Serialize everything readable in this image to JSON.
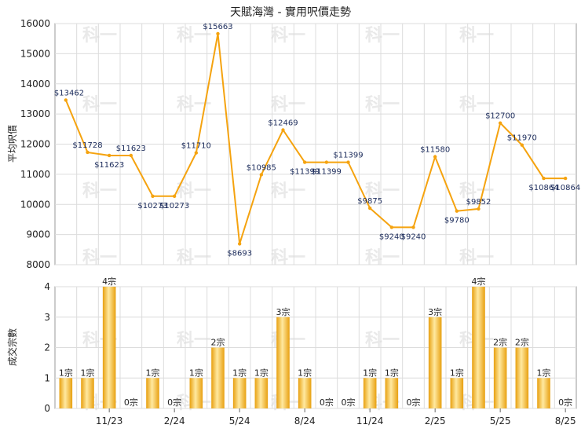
{
  "chart_data": [
    {
      "type": "line",
      "title": "天賦海灣 - 實用呎價走勢",
      "ylabel": "平均呎價",
      "ylim": [
        8000,
        16000
      ],
      "yticks": [
        8000,
        9000,
        10000,
        11000,
        12000,
        13000,
        14000,
        15000,
        16000
      ],
      "grid": true,
      "series": [
        {
          "color": "#f5a30f",
          "values": [
            13462,
            11728,
            11623,
            11623,
            10273,
            10273,
            11710,
            15663,
            8693,
            10985,
            12469,
            11399,
            11399,
            11399,
            9875,
            9240,
            9240,
            11580,
            9780,
            9852,
            12700,
            11970,
            10864,
            10864
          ],
          "labels": [
            "$13462",
            "$11728",
            "$11623",
            "$11623",
            "$10273",
            "$10273",
            "$11710",
            "$15663",
            "$8693",
            "$10985",
            "$12469",
            "$11399",
            "$11399",
            "$11399",
            "$9875",
            "$9240",
            "$9240",
            "$11580",
            "$9780",
            "$9852",
            "$12700",
            "$11970",
            "$10864",
            "$10864"
          ]
        }
      ]
    },
    {
      "type": "bar",
      "ylabel": "成交宗數",
      "ylim": [
        0,
        4
      ],
      "yticks": [
        0,
        1,
        2,
        3,
        4
      ],
      "grid": true,
      "x_tick_labels": [
        "11/23",
        "2/24",
        "5/24",
        "8/24",
        "11/24",
        "2/25",
        "5/25",
        "8/25"
      ],
      "series": [
        {
          "color": "#f5b21c",
          "values": [
            1,
            1,
            4,
            0,
            1,
            0,
            1,
            2,
            1,
            1,
            3,
            1,
            0,
            0,
            1,
            1,
            0,
            3,
            1,
            4,
            2,
            2,
            1,
            0
          ],
          "labels": [
            "1宗",
            "1宗",
            "4宗",
            "0宗",
            "1宗",
            "0宗",
            "1宗",
            "2宗",
            "1宗",
            "1宗",
            "3宗",
            "1宗",
            "0宗",
            "0宗",
            "1宗",
            "1宗",
            "0宗",
            "3宗",
            "1宗",
            "4宗",
            "2宗",
            "2宗",
            "1宗",
            "0宗"
          ]
        }
      ]
    }
  ],
  "watermark": "科一"
}
